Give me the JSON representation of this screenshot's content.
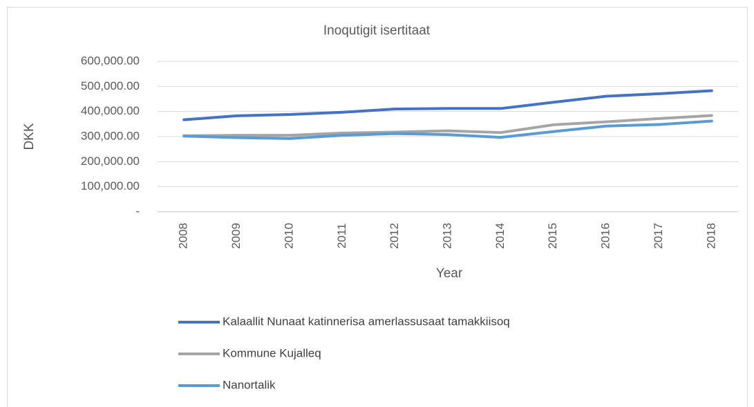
{
  "chart_data": {
    "type": "line",
    "title": "Inoqutigit isertitaat",
    "x_label": "Year",
    "y_label": "DKK",
    "categories": [
      "2008",
      "2009",
      "2010",
      "2011",
      "2012",
      "2013",
      "2014",
      "2015",
      "2016",
      "2017",
      "2018"
    ],
    "series": [
      {
        "name": "Kalaallit Nunaat katinnerisa amerlassusaat tamakkiisoq",
        "color": "#4472c4",
        "values": [
          367000,
          383000,
          388000,
          397000,
          410000,
          412000,
          412000,
          437000,
          461000,
          471000,
          483000
        ]
      },
      {
        "name": "Kommune Kujalleq",
        "color": "#a5a5a5",
        "values": [
          303000,
          305000,
          305000,
          314000,
          318000,
          323000,
          316000,
          347000,
          359000,
          372000,
          384000
        ]
      },
      {
        "name": "Nanortalik",
        "color": "#5b9bd5",
        "values": [
          302000,
          296000,
          292000,
          305000,
          312000,
          308000,
          297000,
          320000,
          342000,
          348000,
          362000
        ]
      }
    ],
    "ylim": [
      0,
      600000
    ],
    "yticks": [
      {
        "value": 0,
        "label": "-"
      },
      {
        "value": 100000,
        "label": "100,000.00"
      },
      {
        "value": 200000,
        "label": "200,000.00"
      },
      {
        "value": 300000,
        "label": "300,000.00"
      },
      {
        "value": 400000,
        "label": "400,000.00"
      },
      {
        "value": 500000,
        "label": "500,000.00"
      },
      {
        "value": 600000,
        "label": "600,000.00"
      }
    ],
    "grid": true,
    "legend": "bottom"
  }
}
